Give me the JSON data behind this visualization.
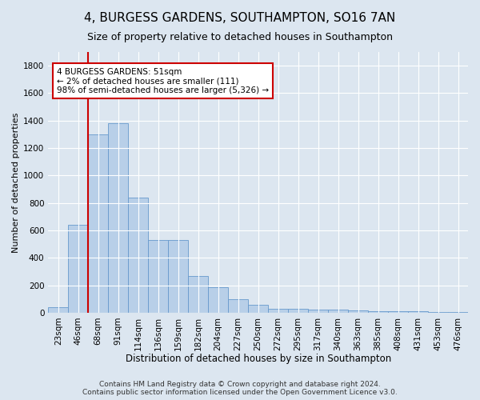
{
  "title1": "4, BURGESS GARDENS, SOUTHAMPTON, SO16 7AN",
  "title2": "Size of property relative to detached houses in Southampton",
  "xlabel": "Distribution of detached houses by size in Southampton",
  "ylabel": "Number of detached properties",
  "categories": [
    "23sqm",
    "46sqm",
    "68sqm",
    "91sqm",
    "114sqm",
    "136sqm",
    "159sqm",
    "182sqm",
    "204sqm",
    "227sqm",
    "250sqm",
    "272sqm",
    "295sqm",
    "317sqm",
    "340sqm",
    "363sqm",
    "385sqm",
    "408sqm",
    "431sqm",
    "453sqm",
    "476sqm"
  ],
  "values": [
    40,
    640,
    1300,
    1380,
    840,
    530,
    530,
    270,
    185,
    100,
    60,
    30,
    30,
    25,
    20,
    15,
    8,
    8,
    8,
    5,
    5
  ],
  "bar_color": "#b8cfe8",
  "bar_edge_color": "#6699cc",
  "vline_color": "#cc0000",
  "annotation_line1": "4 BURGESS GARDENS: 51sqm",
  "annotation_line2": "← 2% of detached houses are smaller (111)",
  "annotation_line3": "98% of semi-detached houses are larger (5,326) →",
  "annotation_box_color": "#ffffff",
  "annotation_box_edge_color": "#cc0000",
  "ylim": [
    0,
    1900
  ],
  "yticks": [
    0,
    200,
    400,
    600,
    800,
    1000,
    1200,
    1400,
    1600,
    1800
  ],
  "background_color": "#dce6f0",
  "footer1": "Contains HM Land Registry data © Crown copyright and database right 2024.",
  "footer2": "Contains public sector information licensed under the Open Government Licence v3.0.",
  "title1_fontsize": 11,
  "title2_fontsize": 9,
  "xlabel_fontsize": 8.5,
  "ylabel_fontsize": 8,
  "tick_fontsize": 7.5,
  "annotation_fontsize": 7.5,
  "footer_fontsize": 6.5
}
